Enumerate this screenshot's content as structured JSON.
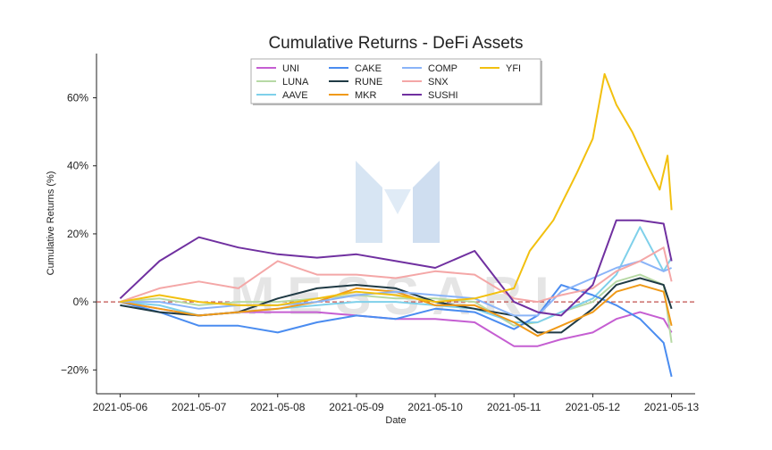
{
  "chart_data": {
    "type": "line",
    "title": "Cumulative Returns - DeFi Assets",
    "xlabel": "Date",
    "ylabel": "Cumulative Returns (%)",
    "x_ticks": [
      "2021-05-06",
      "2021-05-07",
      "2021-05-08",
      "2021-05-09",
      "2021-05-10",
      "2021-05-11",
      "2021-05-12",
      "2021-05-13"
    ],
    "y_ticks": [
      "−20%",
      "0%",
      "20%",
      "40%",
      "60%"
    ],
    "y_tick_values": [
      -20,
      0,
      20,
      40,
      60
    ],
    "xlim": [
      -0.3,
      7.3
    ],
    "ylim": [
      -27,
      73
    ],
    "grid": false,
    "legend_position": "top-center",
    "reference_line": {
      "y": 0,
      "style": "dashed",
      "color": "#c0504d"
    },
    "watermark": "MESSARI",
    "series": [
      {
        "name": "UNI",
        "color": "#c55ed2",
        "x": [
          0,
          0.5,
          1,
          1.5,
          2,
          2.5,
          3,
          3.5,
          4,
          4.5,
          5,
          5.3,
          5.6,
          6,
          6.3,
          6.6,
          6.9,
          7
        ],
        "y": [
          0,
          -2,
          -4,
          -3,
          -3,
          -3,
          -4,
          -5,
          -5,
          -6,
          -13,
          -13,
          -11,
          -9,
          -5,
          -3,
          -5,
          -9
        ]
      },
      {
        "name": "LUNA",
        "color": "#b7d9a5",
        "x": [
          0,
          0.5,
          1,
          1.5,
          2,
          2.5,
          3,
          3.5,
          4,
          4.5,
          5,
          5.3,
          5.6,
          6,
          6.3,
          6.6,
          6.9,
          7
        ],
        "y": [
          0,
          1,
          -1,
          0,
          0,
          1,
          2,
          1,
          1,
          0,
          -7,
          -6,
          -3,
          0,
          6,
          8,
          5,
          -12
        ]
      },
      {
        "name": "AAVE",
        "color": "#7fd0ea",
        "x": [
          0,
          0.5,
          1,
          1.5,
          2,
          2.5,
          3,
          3.5,
          4,
          4.5,
          5,
          5.3,
          5.6,
          6,
          6.3,
          6.6,
          6.9,
          7
        ],
        "y": [
          0,
          -1,
          -4,
          -3,
          -2,
          -1,
          0,
          0,
          -1,
          -2,
          -6,
          -6,
          -3,
          1,
          8,
          22,
          9,
          13
        ]
      },
      {
        "name": "CAKE",
        "color": "#4a8cf0",
        "x": [
          0,
          0.5,
          1,
          1.5,
          2,
          2.5,
          3,
          3.5,
          4,
          4.5,
          5,
          5.3,
          5.6,
          6,
          6.3,
          6.6,
          6.9,
          7
        ],
        "y": [
          0,
          -3,
          -7,
          -7,
          -9,
          -6,
          -4,
          -5,
          -2,
          -3,
          -8,
          -4,
          5,
          2,
          -1,
          -5,
          -12,
          -22
        ]
      },
      {
        "name": "RUNE",
        "color": "#1f3a44",
        "x": [
          0,
          0.5,
          1,
          1.5,
          2,
          2.5,
          3,
          3.5,
          4,
          4.5,
          5,
          5.3,
          5.6,
          6,
          6.3,
          6.6,
          6.9,
          7
        ],
        "y": [
          -1,
          -3,
          -4,
          -3,
          1,
          4,
          5,
          4,
          0,
          -2,
          -4,
          -9,
          -9,
          -2,
          5,
          7,
          5,
          -2
        ]
      },
      {
        "name": "MKR",
        "color": "#f09a18",
        "x": [
          0,
          0.5,
          1,
          1.5,
          2,
          2.5,
          3,
          3.5,
          4,
          4.5,
          5,
          5.3,
          5.6,
          6,
          6.3,
          6.6,
          6.9,
          7
        ],
        "y": [
          0,
          -2,
          -4,
          -3,
          -2,
          0,
          4,
          3,
          -1,
          -1,
          -6,
          -10,
          -7,
          -3,
          3,
          5,
          3,
          -7
        ]
      },
      {
        "name": "COMP",
        "color": "#8ab4f8",
        "x": [
          0,
          0.5,
          1,
          1.5,
          2,
          2.5,
          3,
          3.5,
          4,
          4.5,
          5,
          5.3,
          5.6,
          6,
          6.3,
          6.6,
          6.9,
          7
        ],
        "y": [
          0,
          0,
          -2,
          -1,
          -1,
          0,
          2,
          3,
          2,
          1,
          -4,
          -4,
          3,
          7,
          10,
          12,
          9,
          10
        ]
      },
      {
        "name": "SNX",
        "color": "#f4a7a7",
        "x": [
          0,
          0.5,
          1,
          1.5,
          2,
          2.5,
          3,
          3.5,
          4,
          4.5,
          5,
          5.3,
          5.6,
          6,
          6.3,
          6.6,
          6.9,
          7
        ],
        "y": [
          0,
          4,
          6,
          4,
          12,
          8,
          8,
          7,
          9,
          8,
          1,
          0,
          2,
          4,
          9,
          12,
          16,
          6
        ]
      },
      {
        "name": "SUSHI",
        "color": "#7030a0",
        "x": [
          0,
          0.5,
          1,
          1.5,
          2,
          2.5,
          3,
          3.5,
          4,
          4.5,
          5,
          5.3,
          5.6,
          6,
          6.3,
          6.6,
          6.9,
          7
        ],
        "y": [
          1,
          12,
          19,
          16,
          14,
          13,
          14,
          12,
          10,
          15,
          0,
          -3,
          -4,
          5,
          24,
          24,
          23,
          12
        ]
      },
      {
        "name": "YFI",
        "color": "#f2c00f",
        "x": [
          0,
          0.5,
          1,
          1.5,
          2,
          2.5,
          3,
          3.5,
          4,
          4.5,
          5,
          5.2,
          5.5,
          5.8,
          6,
          6.15,
          6.3,
          6.5,
          6.7,
          6.85,
          6.95,
          7
        ],
        "y": [
          0,
          2,
          0,
          -1,
          -1,
          1,
          3,
          2,
          0,
          1,
          4,
          15,
          24,
          38,
          48,
          67,
          58,
          50,
          40,
          33,
          43,
          27
        ]
      }
    ]
  }
}
